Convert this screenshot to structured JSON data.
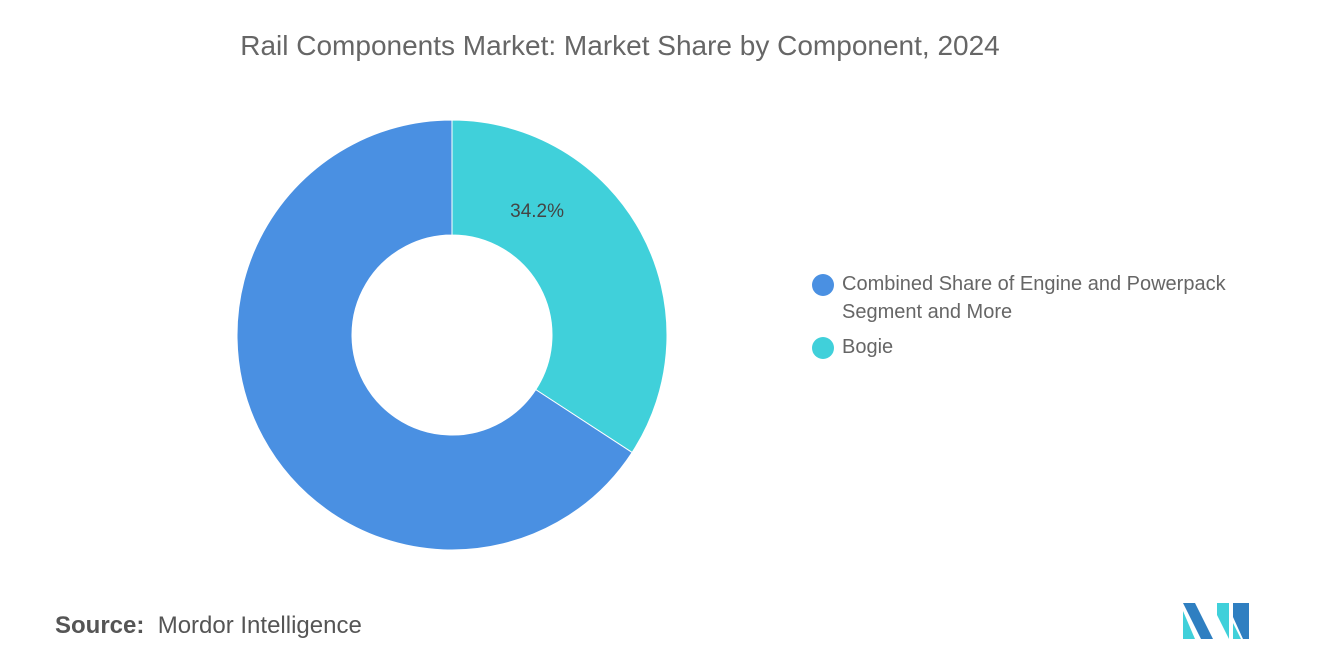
{
  "chart_data": {
    "type": "pie",
    "donut": true,
    "title": "Rail Components Market: Market Share by Component, 2024",
    "slices": [
      {
        "name": "Bogie",
        "value": 34.2,
        "label": "34.2%",
        "color": "#40d0da"
      },
      {
        "name": "Combined Share of Engine and Powerpack Segment and More",
        "value": 65.8,
        "label": "",
        "color": "#4a90e2"
      }
    ],
    "legend_order": [
      "Combined Share of Engine and Powerpack Segment and More",
      "Bogie"
    ],
    "legend_placement": "right"
  },
  "source": {
    "label": "Source:",
    "value": "Mordor Intelligence"
  }
}
